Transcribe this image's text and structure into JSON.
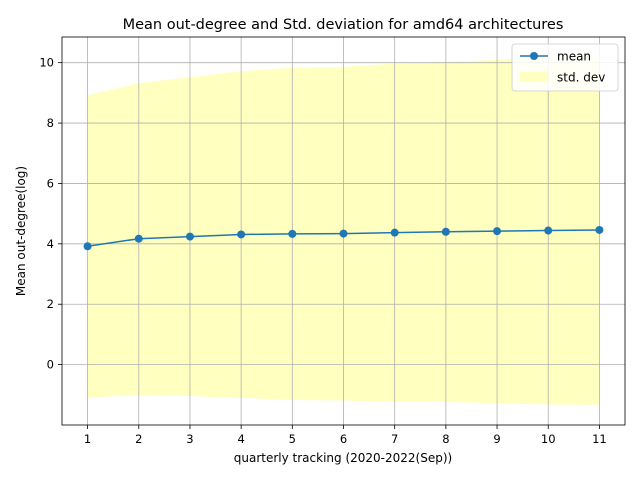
{
  "chart_data": {
    "type": "line",
    "title": "Mean out-degree and Std. deviation for amd64 architectures",
    "xlabel": "quarterly tracking (2020-2022(Sep))",
    "ylabel": "Mean out-degree(log)",
    "x": [
      1,
      2,
      3,
      4,
      5,
      6,
      7,
      8,
      9,
      10,
      11
    ],
    "xlim": [
      0.5,
      11.5
    ],
    "ylim": [
      -2.0,
      10.85
    ],
    "xticks": [
      1,
      2,
      3,
      4,
      5,
      6,
      7,
      8,
      9,
      10,
      11
    ],
    "yticks": [
      0,
      2,
      4,
      6,
      8,
      10
    ],
    "grid": true,
    "legend_position": "top-right",
    "series": [
      {
        "name": "mean",
        "color": "#1f77b4",
        "marker": "circle",
        "values": [
          3.92,
          4.17,
          4.24,
          4.31,
          4.33,
          4.34,
          4.37,
          4.4,
          4.42,
          4.44,
          4.46
        ]
      }
    ],
    "band": {
      "name": "std. dev",
      "color": "#ffffc0",
      "upper": [
        8.92,
        9.32,
        9.52,
        9.72,
        9.83,
        9.86,
        9.97,
        10.02,
        10.1,
        10.17,
        10.22
      ],
      "lower": [
        -1.08,
        -1.02,
        -1.04,
        -1.1,
        -1.17,
        -1.19,
        -1.23,
        -1.24,
        -1.28,
        -1.32,
        -1.33
      ]
    }
  }
}
